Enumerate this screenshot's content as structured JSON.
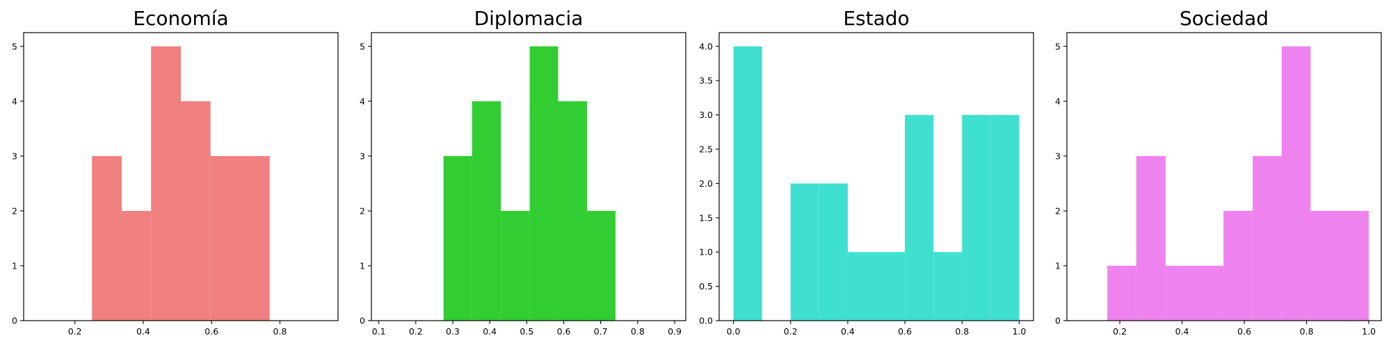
{
  "chart_data": [
    {
      "type": "bar",
      "subtype": "histogram",
      "title": "Economía",
      "color": "#f08080",
      "xlim": [
        0.05,
        0.97
      ],
      "ylim": [
        0,
        5.25
      ],
      "xticks": [
        0.2,
        0.4,
        0.6,
        0.8
      ],
      "xtick_labels": [
        "0.2",
        "0.4",
        "0.6",
        "0.8"
      ],
      "yticks": [
        0,
        1,
        2,
        3,
        4,
        5
      ],
      "ytick_labels": [
        "0",
        "1",
        "2",
        "3",
        "4",
        "5"
      ],
      "bins": [
        {
          "x0": 0.25,
          "x1": 0.337,
          "count": 3
        },
        {
          "x0": 0.337,
          "x1": 0.423,
          "count": 2
        },
        {
          "x0": 0.423,
          "x1": 0.51,
          "count": 5
        },
        {
          "x0": 0.51,
          "x1": 0.597,
          "count": 4
        },
        {
          "x0": 0.597,
          "x1": 0.683,
          "count": 3
        },
        {
          "x0": 0.683,
          "x1": 0.77,
          "count": 3
        }
      ]
    },
    {
      "type": "bar",
      "subtype": "histogram",
      "title": "Diplomacia",
      "color": "#32cd32",
      "xlim": [
        0.08,
        0.93
      ],
      "ylim": [
        0,
        5.25
      ],
      "xticks": [
        0.1,
        0.2,
        0.3,
        0.4,
        0.5,
        0.6,
        0.7,
        0.8,
        0.9
      ],
      "xtick_labels": [
        "0.1",
        "0.2",
        "0.3",
        "0.4",
        "0.5",
        "0.6",
        "0.7",
        "0.8",
        "0.9"
      ],
      "yticks": [
        0,
        1,
        2,
        3,
        4,
        5
      ],
      "ytick_labels": [
        "0",
        "1",
        "2",
        "3",
        "4",
        "5"
      ],
      "bins": [
        {
          "x0": 0.275,
          "x1": 0.352,
          "count": 3
        },
        {
          "x0": 0.352,
          "x1": 0.43,
          "count": 4
        },
        {
          "x0": 0.43,
          "x1": 0.508,
          "count": 2
        },
        {
          "x0": 0.508,
          "x1": 0.585,
          "count": 5
        },
        {
          "x0": 0.585,
          "x1": 0.663,
          "count": 4
        },
        {
          "x0": 0.663,
          "x1": 0.74,
          "count": 2
        }
      ]
    },
    {
      "type": "bar",
      "subtype": "histogram",
      "title": "Estado",
      "color": "#40e0d0",
      "xlim": [
        -0.05,
        1.05
      ],
      "ylim": [
        0,
        4.2
      ],
      "xticks": [
        0.0,
        0.2,
        0.4,
        0.6,
        0.8,
        1.0
      ],
      "xtick_labels": [
        "0.0",
        "0.2",
        "0.4",
        "0.6",
        "0.8",
        "1.0"
      ],
      "yticks": [
        0,
        0.5,
        1.0,
        1.5,
        2.0,
        2.5,
        3.0,
        3.5,
        4.0
      ],
      "ytick_labels": [
        "0.0",
        "0.5",
        "1.0",
        "1.5",
        "2.0",
        "2.5",
        "3.0",
        "3.5",
        "4.0"
      ],
      "bins": [
        {
          "x0": 0.0,
          "x1": 0.1,
          "count": 4
        },
        {
          "x0": 0.1,
          "x1": 0.2,
          "count": 0
        },
        {
          "x0": 0.2,
          "x1": 0.3,
          "count": 2
        },
        {
          "x0": 0.3,
          "x1": 0.4,
          "count": 2
        },
        {
          "x0": 0.4,
          "x1": 0.5,
          "count": 1
        },
        {
          "x0": 0.5,
          "x1": 0.6,
          "count": 1
        },
        {
          "x0": 0.6,
          "x1": 0.7,
          "count": 3
        },
        {
          "x0": 0.7,
          "x1": 0.8,
          "count": 1
        },
        {
          "x0": 0.8,
          "x1": 0.9,
          "count": 3
        },
        {
          "x0": 0.9,
          "x1": 1.0,
          "count": 3
        }
      ]
    },
    {
      "type": "bar",
      "subtype": "histogram",
      "title": "Sociedad",
      "color": "#ee82ee",
      "xlim": [
        0.03,
        1.04
      ],
      "ylim": [
        0,
        5.25
      ],
      "xticks": [
        0.2,
        0.4,
        0.6,
        0.8,
        1.0
      ],
      "xtick_labels": [
        "0.2",
        "0.4",
        "0.6",
        "0.8",
        "1.0"
      ],
      "yticks": [
        0,
        1,
        2,
        3,
        4,
        5
      ],
      "ytick_labels": [
        "0",
        "1",
        "2",
        "3",
        "4",
        "5"
      ],
      "bins": [
        {
          "x0": 0.16,
          "x1": 0.253,
          "count": 1
        },
        {
          "x0": 0.253,
          "x1": 0.347,
          "count": 3
        },
        {
          "x0": 0.347,
          "x1": 0.44,
          "count": 1
        },
        {
          "x0": 0.44,
          "x1": 0.533,
          "count": 1
        },
        {
          "x0": 0.533,
          "x1": 0.627,
          "count": 2
        },
        {
          "x0": 0.627,
          "x1": 0.72,
          "count": 3
        },
        {
          "x0": 0.72,
          "x1": 0.813,
          "count": 5
        },
        {
          "x0": 0.813,
          "x1": 0.907,
          "count": 2
        },
        {
          "x0": 0.907,
          "x1": 1.0,
          "count": 2
        }
      ]
    }
  ]
}
